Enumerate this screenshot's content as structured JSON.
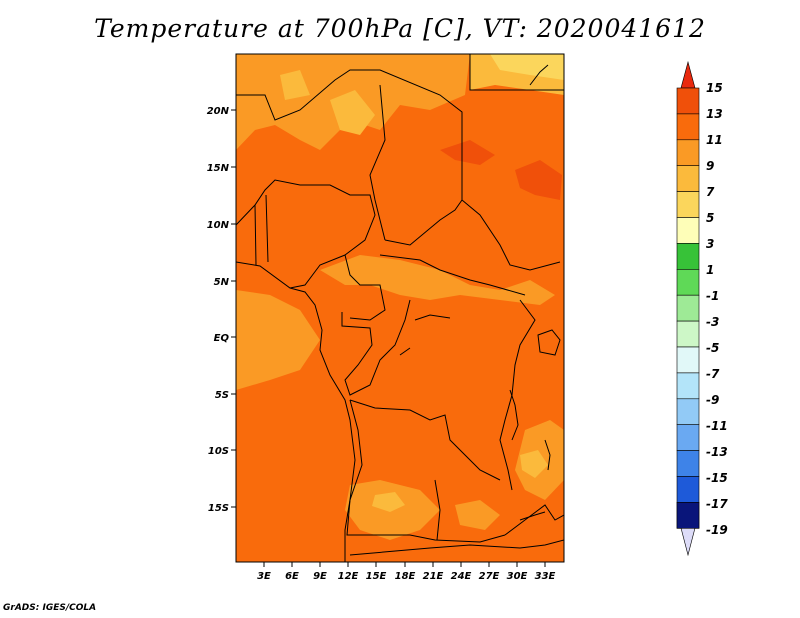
{
  "title": "Temperature at 700hPa [C], VT: 2020041612",
  "credit": "GrADS: IGES/COLA",
  "map": {
    "lat_labels": [
      "20N",
      "15N",
      "10N",
      "5N",
      "EQ",
      "5S",
      "10S",
      "15S"
    ],
    "lon_labels": [
      "3E",
      "6E",
      "9E",
      "12E",
      "15E",
      "18E",
      "21E",
      "24E",
      "27E",
      "30E",
      "33E"
    ],
    "field_colors": {
      "base": "#f96b0c",
      "warm": "#f0500a",
      "cool": "#fa9a25",
      "cooler": "#fbba3c",
      "coolest": "#fbd65c"
    }
  },
  "colorbar": {
    "levels": [
      "15",
      "13",
      "11",
      "9",
      "7",
      "5",
      "3",
      "1",
      "-1",
      "-3",
      "-5",
      "-7",
      "-9",
      "-11",
      "-13",
      "-15",
      "-17",
      "-19"
    ],
    "colors": [
      "#e9290e",
      "#f0500a",
      "#f96b0c",
      "#fa9a25",
      "#fbba3c",
      "#fbd65c",
      "#fefeb8",
      "#37c238",
      "#5fd957",
      "#9eea96",
      "#cdf7c7",
      "#e1f8f8",
      "#b3e4f9",
      "#92caf6",
      "#6aa9f2",
      "#3e83e8",
      "#1e5ad9",
      "#123cb6",
      "#09157a",
      "#dddcf8"
    ]
  },
  "chart_data": {
    "type": "heatmap",
    "title": "Temperature at 700hPa [C], VT: 2020041612",
    "variable": "Temperature at 700hPa",
    "units": "C",
    "valid_time": "2020041612",
    "x_range_lon": [
      0,
      35
    ],
    "y_range_lat": [
      -19.5,
      24.5
    ],
    "contour_levels": [
      15,
      13,
      11,
      9,
      7,
      5,
      3,
      1,
      -1,
      -3,
      -5,
      -7,
      -9,
      -11,
      -13,
      -15,
      -17,
      -19
    ],
    "dominant_range_C": [
      7,
      15
    ]
  }
}
